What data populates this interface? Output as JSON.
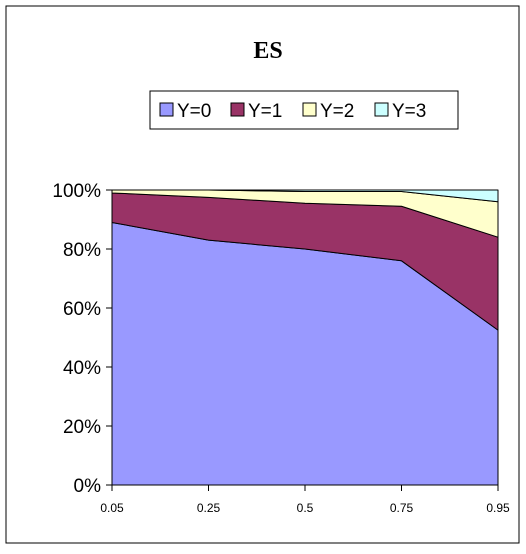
{
  "chart_data": {
    "type": "area",
    "stacked": "percent",
    "title": "ES",
    "xlabel": "",
    "ylabel": "",
    "categories": [
      "0.05",
      "0.25",
      "0.5",
      "0.75",
      "0.95"
    ],
    "ylim": [
      0,
      100
    ],
    "yticks": [
      "0%",
      "20%",
      "40%",
      "60%",
      "80%",
      "100%"
    ],
    "legend_position": "top",
    "grid": false,
    "series": [
      {
        "name": "Y=0",
        "values": [
          89,
          83,
          80,
          76,
          52.5
        ],
        "color": "#9999ff"
      },
      {
        "name": "Y=1",
        "values": [
          10,
          14.5,
          15.5,
          18.5,
          31.5
        ],
        "color": "#993366"
      },
      {
        "name": "Y=2",
        "values": [
          1,
          2.5,
          4,
          5,
          12
        ],
        "color": "#ffffcc"
      },
      {
        "name": "Y=3",
        "values": [
          0,
          0,
          0.5,
          0.5,
          4
        ],
        "color": "#ccffff"
      }
    ]
  }
}
